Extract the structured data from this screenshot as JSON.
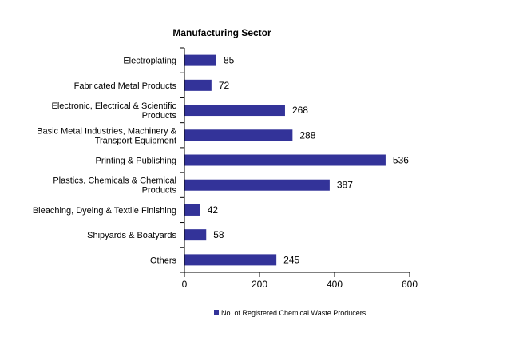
{
  "chart_data": {
    "type": "bar",
    "orientation": "horizontal",
    "title": "Manufacturing Sector",
    "categories": [
      [
        "Electroplating"
      ],
      [
        "Fabricated Metal Products"
      ],
      [
        "Electronic, Electrical & Scientific",
        "Products"
      ],
      [
        "Basic Metal Industries, Machinery &",
        "Transport Equipment"
      ],
      [
        "Printing & Publishing"
      ],
      [
        "Plastics, Chemicals & Chemical",
        "Products"
      ],
      [
        "Bleaching, Dyeing & Textile Finishing"
      ],
      [
        "Shipyards & Boatyards"
      ],
      [
        "Others"
      ]
    ],
    "series": [
      {
        "name": "No. of Registered Chemical Waste Producers",
        "values": [
          85,
          72,
          268,
          288,
          536,
          387,
          42,
          58,
          245
        ],
        "color": "#333399"
      }
    ],
    "xlim": [
      0,
      600
    ],
    "xticks": [
      0,
      200,
      400,
      600
    ],
    "xlabel": "",
    "ylabel": "",
    "grid": false,
    "data_labels": true,
    "legend": "bottom"
  }
}
